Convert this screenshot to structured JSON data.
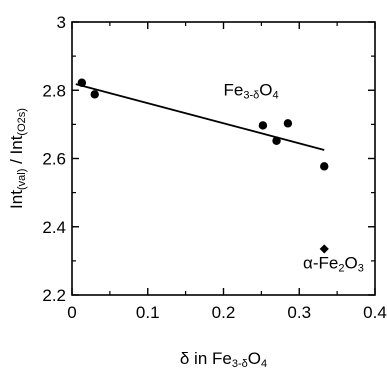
{
  "chart_data": {
    "type": "scatter",
    "xlabel": {
      "pre": "δ in Fe",
      "sub1": "3-δ",
      "mid": "O",
      "sub2": "4"
    },
    "ylabel": {
      "p1": "Int",
      "s1": "(val)",
      "p2": " / Int",
      "s2": "(O2s)"
    },
    "xlim": [
      0,
      0.4
    ],
    "ylim": [
      2.2,
      3.0
    ],
    "x_ticks": [
      {
        "value": 0,
        "label": "0"
      },
      {
        "value": 0.1,
        "label": "0.1"
      },
      {
        "value": 0.2,
        "label": "0.2"
      },
      {
        "value": 0.3,
        "label": "0.3"
      },
      {
        "value": 0.4,
        "label": "0.4"
      }
    ],
    "y_ticks": [
      {
        "value": 2.2,
        "label": "2.2"
      },
      {
        "value": 2.4,
        "label": "2.4"
      },
      {
        "value": 2.6,
        "label": "2.6"
      },
      {
        "value": 2.8,
        "label": "2.8"
      },
      {
        "value": 3.0,
        "label": "3"
      }
    ],
    "series": [
      {
        "name": "Fe3-δO4",
        "marker": "circle",
        "points": [
          {
            "x": 0.013,
            "y": 2.822
          },
          {
            "x": 0.03,
            "y": 2.788
          },
          {
            "x": 0.252,
            "y": 2.697
          },
          {
            "x": 0.27,
            "y": 2.652
          },
          {
            "x": 0.285,
            "y": 2.703
          },
          {
            "x": 0.333,
            "y": 2.577
          }
        ],
        "fit_line": {
          "x1": 0.005,
          "y1": 2.818,
          "x2": 0.333,
          "y2": 2.625
        }
      },
      {
        "name": "α-Fe2O3",
        "marker": "diamond",
        "points": [
          {
            "x": 0.333,
            "y": 2.335
          }
        ]
      }
    ],
    "annotations": [
      {
        "id": "fe3o4",
        "pre": "Fe",
        "sub1": "3-δ",
        "mid": "O",
        "sub2": "4",
        "x": 0.2,
        "y": 2.785
      },
      {
        "id": "fe2o3",
        "pre": "α-Fe",
        "sub1": "2",
        "mid": "O",
        "sub2": "3",
        "x": 0.305,
        "y": 2.278
      }
    ],
    "grid": false,
    "legend": "none"
  }
}
